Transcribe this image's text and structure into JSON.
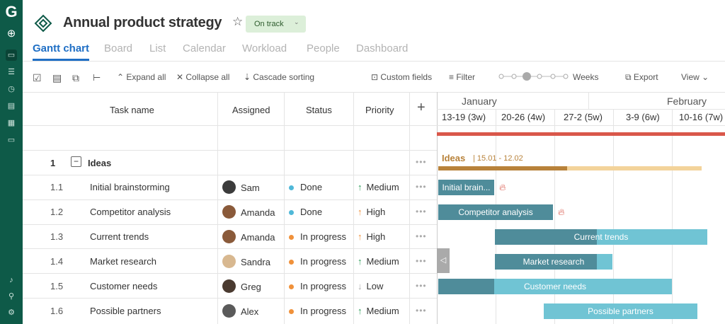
{
  "sidebar": {
    "logo": "G",
    "icons": [
      "plus-circle-icon",
      "folder-icon",
      "list-icon",
      "clock-icon",
      "document-icon",
      "apps-icon",
      "chat-icon",
      "bell-icon",
      "search-icon",
      "gear-icon"
    ]
  },
  "header": {
    "title": "Annual product strategy",
    "status": "On track"
  },
  "tabs": [
    "Gantt chart",
    "Board",
    "List",
    "Calendar",
    "Workload",
    "People",
    "Dashboard"
  ],
  "toolbar": {
    "expand": "Expand all",
    "collapse": "Collapse all",
    "cascade": "Cascade sorting",
    "custom_fields": "Custom fields",
    "filter": "Filter",
    "zoom_label": "Weeks",
    "zoom_level": 3,
    "zoom_steps": 7,
    "export": "Export",
    "view": "View"
  },
  "columns": {
    "task": "Task name",
    "assigned": "Assigned",
    "status": "Status",
    "priority": "Priority",
    "add": "+"
  },
  "timeline": {
    "months": [
      "January",
      "February"
    ],
    "weeks": [
      "13-19 (3w)",
      "20-26 (4w)",
      "27-2 (5w)",
      "3-9 (6w)",
      "10-16 (7w)"
    ]
  },
  "group": {
    "num": "1",
    "name": "Ideas",
    "dates": "15.01 - 12.02",
    "progress": 0.49
  },
  "colors": {
    "accent": "#1f6fc5",
    "sidebar": "#0e5a48",
    "done": "#4fb8d8",
    "in_progress": "#f0913a",
    "up": "#2e9e5a",
    "high": "#f0913a",
    "low": "#aaaaaa",
    "critical": "#d9574a"
  },
  "rows": [
    {
      "num": "1.1",
      "name": "Initial brainstorming",
      "assignee": "Sam",
      "status": "Done",
      "priority": "Medium",
      "arrow": "↑",
      "bar": "Initial brain...",
      "progress": 1,
      "fire": true
    },
    {
      "num": "1.2",
      "name": "Competitor analysis",
      "assignee": "Amanda",
      "status": "Done",
      "priority": "High",
      "arrow": "↑",
      "bar": "Competitor analysis",
      "progress": 1,
      "fire": true
    },
    {
      "num": "1.3",
      "name": "Current trends",
      "assignee": "Amanda",
      "status": "In progress",
      "priority": "High",
      "arrow": "↑",
      "bar": "Current trends",
      "progress": 0.48
    },
    {
      "num": "1.4",
      "name": "Market research",
      "assignee": "Sandra",
      "status": "In progress",
      "priority": "Medium",
      "arrow": "↑",
      "bar": "Market research",
      "progress": 0.87
    },
    {
      "num": "1.5",
      "name": "Customer needs",
      "assignee": "Greg",
      "status": "In progress",
      "priority": "Low",
      "arrow": "↓",
      "bar": "Customer needs",
      "progress": 0.24
    },
    {
      "num": "1.6",
      "name": "Possible partners",
      "assignee": "Alex",
      "status": "In progress",
      "priority": "Medium",
      "arrow": "↑",
      "bar": "Possible partners",
      "progress": 0
    }
  ]
}
